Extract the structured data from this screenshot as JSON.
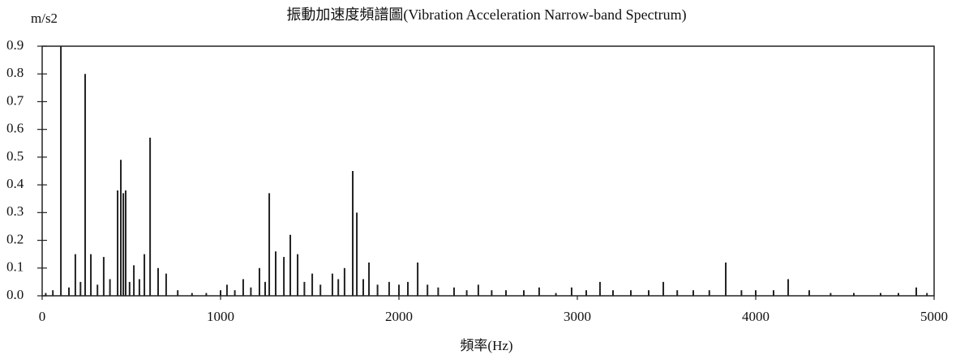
{
  "chart_data": {
    "type": "stem",
    "title": "振動加速度頻譜圖(Vibration Acceleration Narrow-band Spectrum)",
    "y_label": "m/s2",
    "x_label": "頻率(Hz)",
    "color": "#222222",
    "xlim": [
      0,
      5000
    ],
    "xticks": [
      0,
      1000,
      2000,
      3000,
      4000,
      5000
    ],
    "ylim": [
      0,
      0.9
    ],
    "yticks": [
      {
        "value": 0,
        "label": "0.0"
      },
      0.1,
      0.2,
      0.3,
      0.4,
      0.5,
      0.6,
      0.7,
      0.8,
      0.9
    ],
    "x": [
      20,
      60,
      105,
      150,
      186,
      215,
      241,
      273,
      310,
      345,
      380,
      423,
      441,
      455,
      468,
      490,
      514,
      545,
      573,
      605,
      650,
      695,
      760,
      840,
      920,
      1000,
      1036,
      1080,
      1127,
      1170,
      1218,
      1250,
      1273,
      1309,
      1355,
      1391,
      1432,
      1470,
      1514,
      1560,
      1627,
      1660,
      1695,
      1741,
      1764,
      1800,
      1832,
      1880,
      1945,
      2000,
      2050,
      2105,
      2160,
      2220,
      2309,
      2380,
      2445,
      2520,
      2600,
      2700,
      2786,
      2880,
      2968,
      3050,
      3127,
      3200,
      3300,
      3400,
      3482,
      3560,
      3650,
      3740,
      3832,
      3920,
      4000,
      4100,
      4182,
      4300,
      4420,
      4550,
      4700,
      4800,
      4900,
      4960
    ],
    "values": [
      0.01,
      0.02,
      0.9,
      0.03,
      0.15,
      0.05,
      0.8,
      0.15,
      0.04,
      0.14,
      0.06,
      0.38,
      0.49,
      0.37,
      0.38,
      0.05,
      0.11,
      0.06,
      0.15,
      0.57,
      0.1,
      0.08,
      0.02,
      0.01,
      0.01,
      0.02,
      0.04,
      0.02,
      0.06,
      0.03,
      0.1,
      0.05,
      0.37,
      0.16,
      0.14,
      0.22,
      0.15,
      0.05,
      0.08,
      0.04,
      0.08,
      0.06,
      0.1,
      0.45,
      0.3,
      0.06,
      0.12,
      0.04,
      0.05,
      0.04,
      0.05,
      0.12,
      0.04,
      0.03,
      0.03,
      0.02,
      0.04,
      0.02,
      0.02,
      0.02,
      0.03,
      0.01,
      0.03,
      0.02,
      0.05,
      0.02,
      0.02,
      0.02,
      0.05,
      0.02,
      0.02,
      0.02,
      0.12,
      0.02,
      0.02,
      0.02,
      0.06,
      0.02,
      0.01,
      0.01,
      0.01,
      0.01,
      0.03,
      0.01
    ]
  }
}
